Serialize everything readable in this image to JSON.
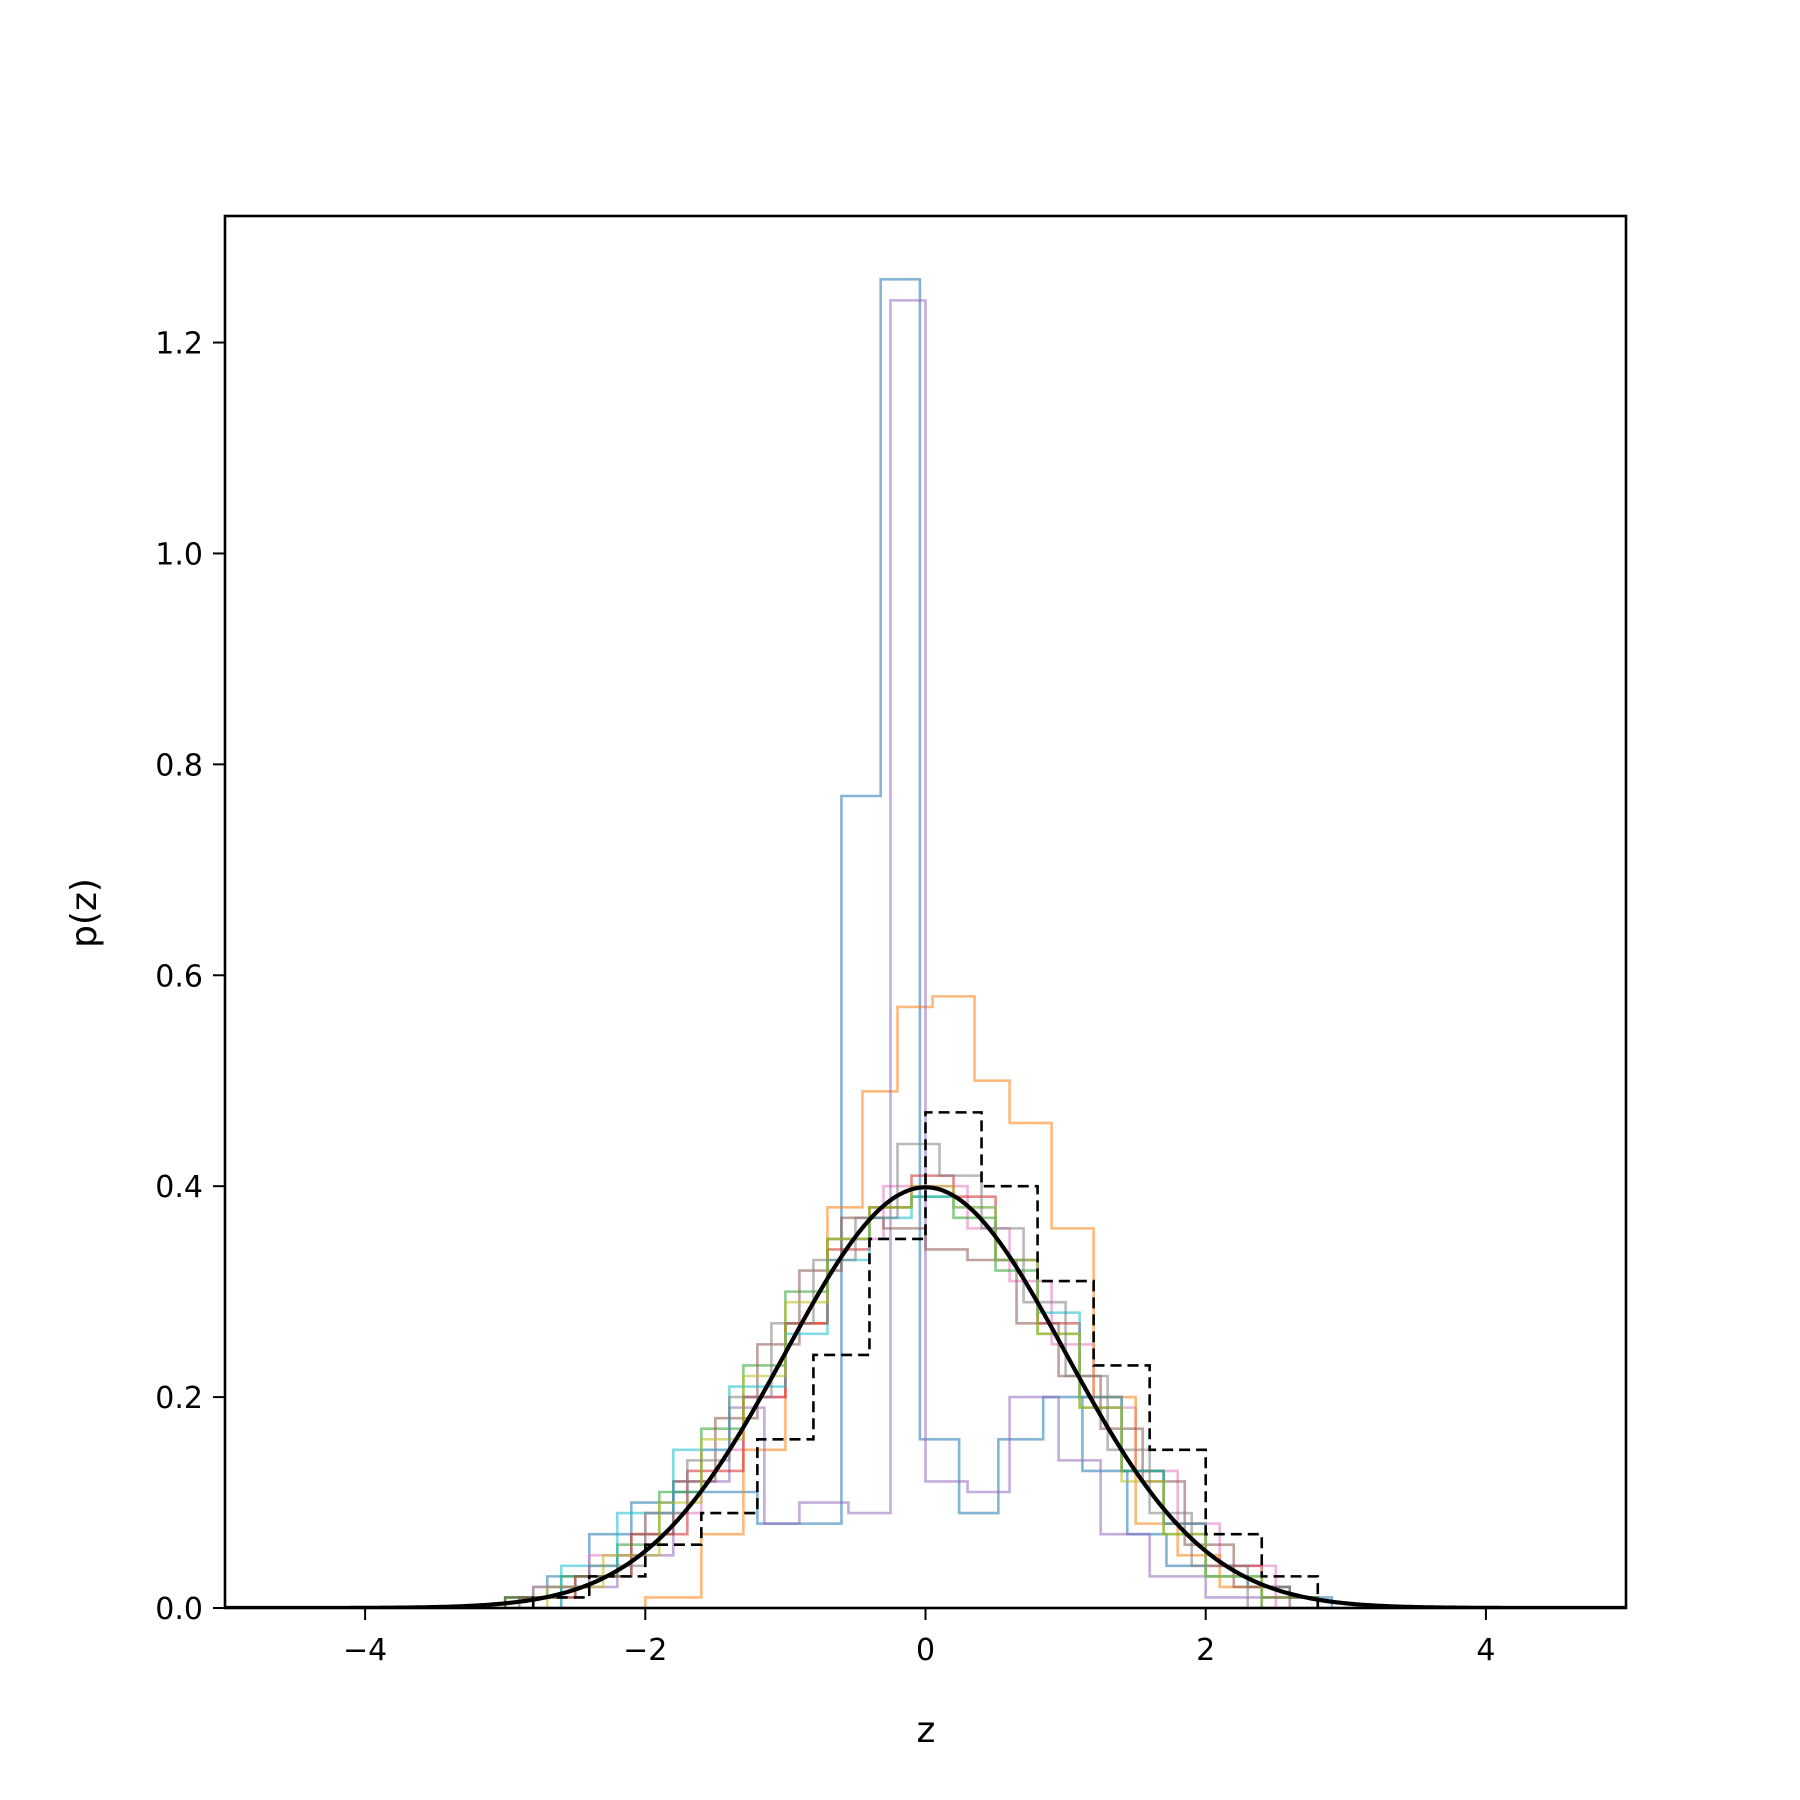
{
  "chart_data": {
    "type": "histogram",
    "title": "",
    "xlabel": "z",
    "ylabel": "p(z)",
    "xlim": [
      -5,
      5
    ],
    "ylim": [
      0,
      1.32
    ],
    "x_ticks": [
      -4,
      -2,
      0,
      2,
      4
    ],
    "x_tick_labels": [
      "−4",
      "−2",
      "0",
      "2",
      "4"
    ],
    "y_ticks": [
      0.0,
      0.2,
      0.4,
      0.6,
      0.8,
      1.0,
      1.2
    ],
    "y_tick_labels": [
      "0.0",
      "0.2",
      "0.4",
      "0.6",
      "0.8",
      "1.0",
      "1.2"
    ],
    "grid": false,
    "legend": "none",
    "histograms": [
      {
        "color": "#1f77b4",
        "edges": [
          -3.0,
          -2.7,
          -2.4,
          -2.1,
          -1.8,
          -1.5,
          -1.2,
          -0.9,
          -0.6,
          -0.32,
          -0.04,
          0.24,
          0.52,
          0.84,
          1.12,
          1.44,
          1.72,
          2.0,
          2.3,
          2.6,
          2.9
        ],
        "values": [
          0.01,
          0.03,
          0.07,
          0.1,
          0.11,
          0.11,
          0.08,
          0.08,
          0.77,
          1.26,
          0.16,
          0.09,
          0.16,
          0.2,
          0.13,
          0.07,
          0.04,
          0.03,
          0.02,
          0.01
        ]
      },
      {
        "color": "#e377c2",
        "edges": [
          -2.8,
          -2.4,
          -2.0,
          -1.6,
          -1.3,
          -1.0,
          -0.7,
          -0.3,
          0.0,
          0.3,
          0.6,
          0.9,
          1.2,
          1.5,
          1.8,
          2.1,
          2.5
        ],
        "values": [
          0.02,
          0.05,
          0.09,
          0.15,
          0.2,
          0.27,
          0.35,
          0.4,
          0.4,
          0.36,
          0.31,
          0.25,
          0.19,
          0.13,
          0.08,
          0.04
        ]
      },
      {
        "color": "#ff7f0e",
        "edges": [
          -2.0,
          -1.6,
          -1.3,
          -1.0,
          -0.7,
          -0.45,
          -0.2,
          0.05,
          0.35,
          0.6,
          0.9,
          1.2,
          1.5,
          1.8,
          2.1,
          2.4
        ],
        "values": [
          0.01,
          0.07,
          0.15,
          0.27,
          0.38,
          0.49,
          0.57,
          0.58,
          0.5,
          0.46,
          0.36,
          0.2,
          0.08,
          0.05,
          0.02
        ]
      },
      {
        "color": "#9467bd",
        "edges": [
          -2.6,
          -2.2,
          -1.8,
          -1.4,
          -1.15,
          -0.9,
          -0.55,
          -0.25,
          0.0,
          0.3,
          0.6,
          0.95,
          1.25,
          1.6,
          2.0,
          2.4
        ],
        "values": [
          0.02,
          0.05,
          0.12,
          0.19,
          0.08,
          0.1,
          0.09,
          1.24,
          0.12,
          0.11,
          0.2,
          0.14,
          0.07,
          0.03,
          0.01
        ]
      },
      {
        "color": "#d62728",
        "edges": [
          -3.0,
          -2.5,
          -2.1,
          -1.7,
          -1.3,
          -1.0,
          -0.7,
          -0.4,
          -0.1,
          0.2,
          0.5,
          0.8,
          1.1,
          1.4,
          1.7,
          2.0,
          2.4,
          2.8
        ],
        "values": [
          0.01,
          0.03,
          0.07,
          0.13,
          0.2,
          0.27,
          0.34,
          0.38,
          0.41,
          0.39,
          0.33,
          0.27,
          0.2,
          0.13,
          0.08,
          0.04,
          0.01
        ]
      },
      {
        "color": "#2ca02c",
        "edges": [
          -3.0,
          -2.6,
          -2.2,
          -1.9,
          -1.6,
          -1.3,
          -1.0,
          -0.7,
          -0.4,
          -0.1,
          0.2,
          0.5,
          0.8,
          1.1,
          1.4,
          1.7,
          2.0,
          2.4,
          2.8
        ],
        "values": [
          0.01,
          0.03,
          0.06,
          0.11,
          0.17,
          0.23,
          0.3,
          0.35,
          0.38,
          0.39,
          0.37,
          0.32,
          0.26,
          0.19,
          0.13,
          0.07,
          0.03,
          0.01
        ]
      },
      {
        "color": "#8c564b",
        "edges": [
          -2.9,
          -2.5,
          -2.1,
          -1.8,
          -1.5,
          -1.2,
          -0.9,
          -0.6,
          -0.3,
          0.0,
          0.3,
          0.65,
          0.95,
          1.25,
          1.55,
          1.85,
          2.2,
          2.6
        ],
        "values": [
          0.01,
          0.03,
          0.07,
          0.12,
          0.18,
          0.25,
          0.32,
          0.37,
          0.36,
          0.34,
          0.33,
          0.27,
          0.22,
          0.17,
          0.12,
          0.06,
          0.02
        ]
      },
      {
        "color": "#17becf",
        "edges": [
          -2.6,
          -2.2,
          -1.8,
          -1.4,
          -1.0,
          -0.7,
          -0.4,
          -0.1,
          0.2,
          0.5,
          0.8,
          1.1,
          1.4,
          1.7,
          2.0,
          2.4
        ],
        "values": [
          0.04,
          0.09,
          0.15,
          0.21,
          0.26,
          0.33,
          0.37,
          0.39,
          0.38,
          0.33,
          0.28,
          0.2,
          0.13,
          0.08,
          0.03
        ]
      },
      {
        "color": "#bcbd22",
        "edges": [
          -2.7,
          -2.3,
          -1.9,
          -1.6,
          -1.3,
          -1.0,
          -0.7,
          -0.4,
          -0.1,
          0.2,
          0.5,
          0.8,
          1.1,
          1.4,
          1.7,
          2.0,
          2.4
        ],
        "values": [
          0.02,
          0.05,
          0.1,
          0.16,
          0.22,
          0.29,
          0.35,
          0.38,
          0.4,
          0.38,
          0.33,
          0.26,
          0.19,
          0.12,
          0.07,
          0.03
        ]
      },
      {
        "color": "#7f7f7f",
        "edges": [
          -2.8,
          -2.4,
          -2.0,
          -1.7,
          -1.4,
          -1.1,
          -0.8,
          -0.5,
          -0.2,
          0.1,
          0.4,
          0.7,
          1.0,
          1.3,
          1.6,
          1.9,
          2.3
        ],
        "values": [
          0.02,
          0.04,
          0.09,
          0.14,
          0.2,
          0.27,
          0.33,
          0.37,
          0.44,
          0.41,
          0.36,
          0.29,
          0.22,
          0.15,
          0.09,
          0.04
        ]
      }
    ],
    "reference_histogram": {
      "color": "#000000",
      "style": "dashed",
      "edges": [
        -2.8,
        -2.4,
        -2.0,
        -1.6,
        -1.2,
        -0.8,
        -0.4,
        0.0,
        0.4,
        0.8,
        1.2,
        1.6,
        2.0,
        2.4,
        2.8
      ],
      "values": [
        0.01,
        0.03,
        0.06,
        0.09,
        0.16,
        0.24,
        0.35,
        0.47,
        0.4,
        0.31,
        0.23,
        0.15,
        0.07,
        0.03
      ]
    },
    "curve": {
      "color": "#000000",
      "label": "",
      "x_range": [
        -5,
        5
      ],
      "function": "standard normal density",
      "peak": 0.399
    }
  }
}
